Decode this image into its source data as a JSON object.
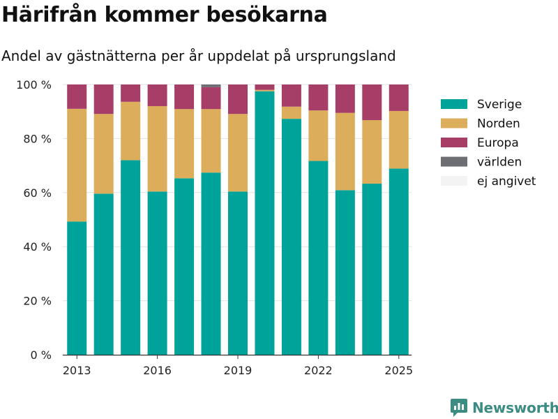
{
  "header": {
    "title": "Härifrån kommer besökarna",
    "subtitle": "Andel av gästnätterna per år uppdelat på ursprungsland"
  },
  "logo": {
    "text": "Newsworthy",
    "icon": "newsworthy-logo-icon",
    "color": "#3c8c83"
  },
  "chart_data": {
    "type": "bar",
    "stacked": true,
    "title": "",
    "xlabel": "",
    "ylabel": "",
    "ylim": [
      0,
      100
    ],
    "y_ticks": [
      "0 %",
      "20 %",
      "40 %",
      "60 %",
      "80 %",
      "100 %"
    ],
    "y_tick_values": [
      0,
      20,
      40,
      60,
      80,
      100
    ],
    "x_ticks": [
      "2013",
      "2016",
      "2019",
      "2022",
      "2025"
    ],
    "grid": true,
    "legend_position": "right",
    "categories": [
      2013,
      2014,
      2015,
      2016,
      2017,
      2018,
      2019,
      2020,
      2021,
      2022,
      2023,
      2024,
      2025
    ],
    "series": [
      {
        "name": "Sverige",
        "color": "#00a39a",
        "values": [
          49.3,
          59.6,
          72.0,
          60.4,
          65.3,
          67.4,
          60.4,
          97.5,
          87.3,
          71.7,
          60.9,
          63.3,
          68.9
        ]
      },
      {
        "name": "Norden",
        "color": "#dcae5c",
        "values": [
          41.7,
          29.5,
          21.6,
          31.6,
          25.6,
          23.5,
          28.7,
          0.5,
          4.5,
          18.7,
          28.6,
          23.5,
          21.3
        ]
      },
      {
        "name": "Europa",
        "color": "#a63e68",
        "values": [
          9.0,
          10.9,
          6.4,
          8.0,
          9.1,
          8.1,
          10.9,
          2.0,
          8.2,
          9.6,
          10.5,
          13.2,
          9.8
        ]
      },
      {
        "name": "världen",
        "color": "#6d6e73",
        "values": [
          0,
          0,
          0,
          0,
          0,
          1.0,
          0,
          0,
          0,
          0,
          0,
          0,
          0
        ]
      },
      {
        "name": "ej angivet",
        "color": "#f3f3f3",
        "values": [
          0,
          0,
          0,
          0,
          0,
          0,
          0,
          0,
          0,
          0,
          0,
          0,
          0
        ]
      }
    ]
  }
}
